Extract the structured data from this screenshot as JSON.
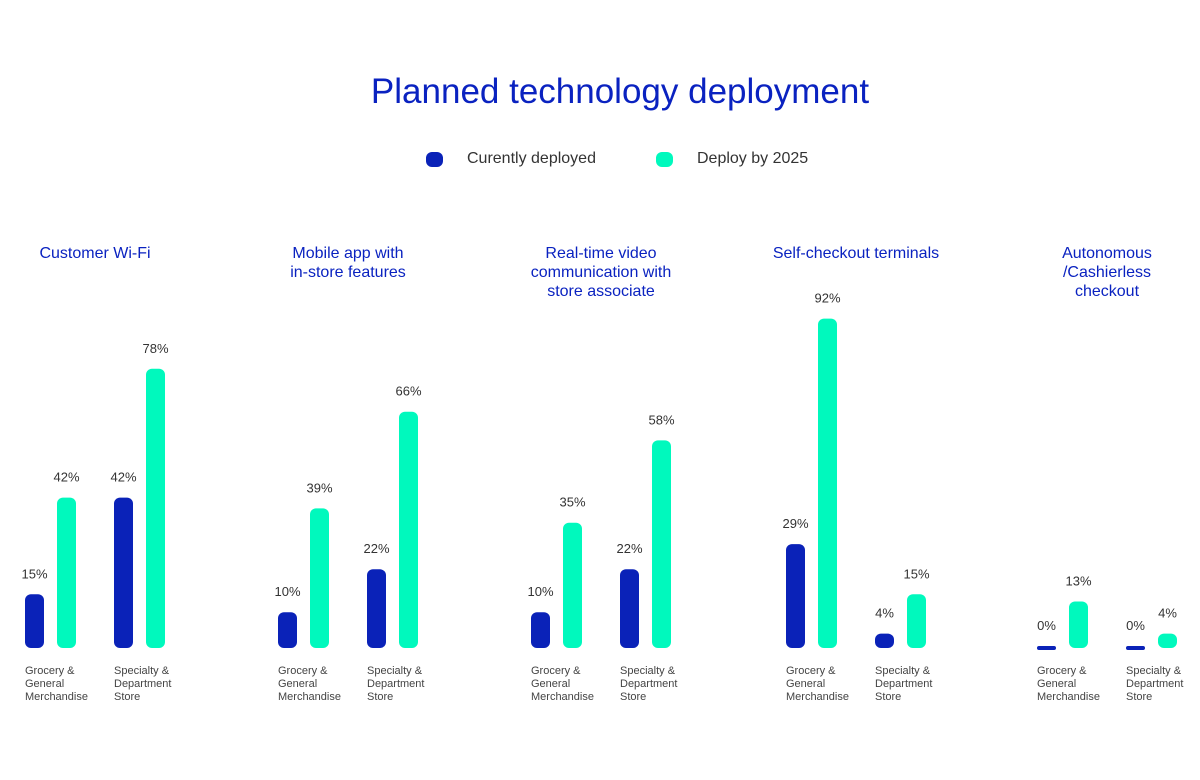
{
  "chart_data": {
    "type": "bar",
    "title": "Planned technology deployment",
    "legend": {
      "placement": "top",
      "entries": [
        {
          "name": "Curently deployed",
          "color": "#0a22b8"
        },
        {
          "name": "Deploy by 2025",
          "color": "#00f9bd"
        }
      ]
    },
    "ylim": [
      0,
      100
    ],
    "grid": false,
    "categories": [
      "Grocery & General Merchandise",
      "Specialty & Department Store"
    ],
    "groups": [
      {
        "title": "Customer Wi-Fi",
        "series": [
          {
            "name": "Curently deployed",
            "values": [
              15,
              42
            ]
          },
          {
            "name": "Deploy by 2025",
            "values": [
              42,
              78
            ]
          }
        ]
      },
      {
        "title": "Mobile app with\nin-store features",
        "series": [
          {
            "name": "Curently deployed",
            "values": [
              10,
              22
            ]
          },
          {
            "name": "Deploy by 2025",
            "values": [
              39,
              66
            ]
          }
        ]
      },
      {
        "title": "Real-time video\ncommunication with\nstore associate",
        "series": [
          {
            "name": "Curently deployed",
            "values": [
              10,
              22
            ]
          },
          {
            "name": "Deploy by 2025",
            "values": [
              35,
              58
            ]
          }
        ]
      },
      {
        "title": "Self-checkout terminals",
        "series": [
          {
            "name": "Curently deployed",
            "values": [
              29,
              4
            ]
          },
          {
            "name": "Deploy by 2025",
            "values": [
              92,
              15
            ]
          }
        ]
      },
      {
        "title": "Autonomous\n/Cashierless\ncheckout",
        "series": [
          {
            "name": "Curently deployed",
            "values": [
              0,
              0
            ]
          },
          {
            "name": "Deploy by 2025",
            "values": [
              13,
              4
            ]
          }
        ]
      }
    ],
    "category_labels": [
      "Grocery &\nGeneral\nMerchandise",
      "Specialty &\nDepartment\nStore"
    ]
  }
}
